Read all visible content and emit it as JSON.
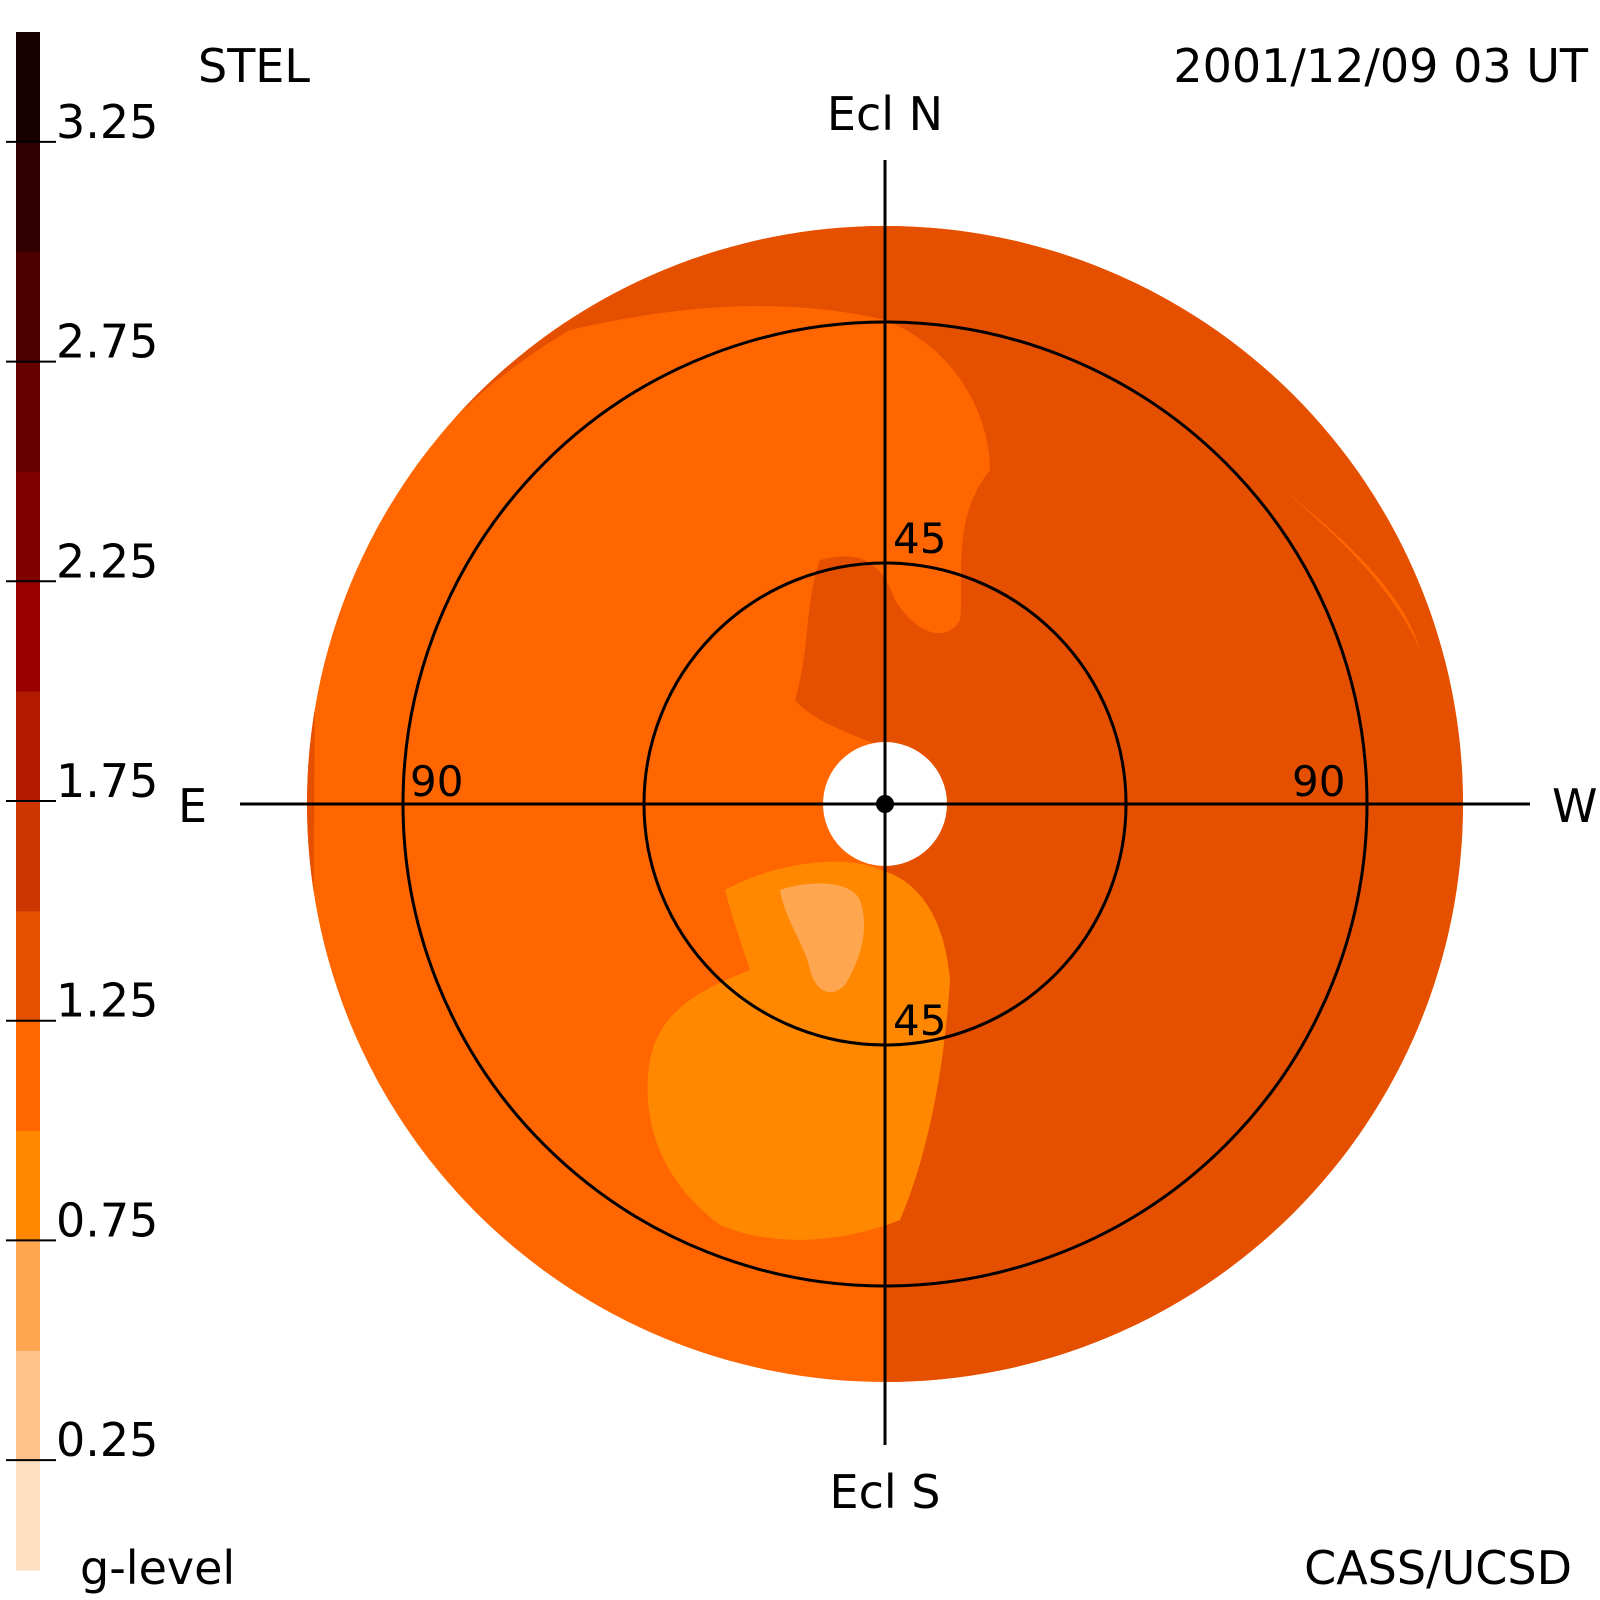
{
  "header": {
    "instrument": "STEL",
    "timestamp": "2001/12/09 03 UT"
  },
  "footer": {
    "colorbar_label": "g-level",
    "credit": "CASS/UCSD"
  },
  "directions": {
    "north": "Ecl N",
    "south": "Ecl S",
    "east": "E",
    "west": "W"
  },
  "ring_labels": {
    "inner_top": "45",
    "inner_bottom": "45",
    "outer_left": "90",
    "outer_right": "90"
  },
  "chart_data": {
    "type": "heatmap",
    "projection": "fisheye sky map centred on the Sun (ecliptic frame)",
    "elongation_rings": [
      45,
      90
    ],
    "axes": [
      "Ecl N",
      "Ecl S",
      "E",
      "W"
    ],
    "colorbar": {
      "label": "g-level",
      "range": [
        0,
        3.5
      ],
      "tick_values": [
        0.25,
        0.75,
        1.25,
        1.75,
        2.25,
        2.75,
        3.25
      ],
      "tick_labels": [
        "0.25",
        "0.75",
        "1.25",
        "1.75",
        "2.25",
        "2.75",
        "3.25"
      ],
      "bins": [
        {
          "from": 0.0,
          "to": 0.25,
          "color": "#ffdfc2"
        },
        {
          "from": 0.25,
          "to": 0.5,
          "color": "#ffc38a"
        },
        {
          "from": 0.5,
          "to": 0.75,
          "color": "#ffa650"
        },
        {
          "from": 0.75,
          "to": 1.0,
          "color": "#ff8800"
        },
        {
          "from": 1.0,
          "to": 1.25,
          "color": "#ff6600"
        },
        {
          "from": 1.25,
          "to": 1.5,
          "color": "#e54f00"
        },
        {
          "from": 1.5,
          "to": 1.75,
          "color": "#cc3600"
        },
        {
          "from": 1.75,
          "to": 2.0,
          "color": "#b21b00"
        },
        {
          "from": 2.0,
          "to": 2.25,
          "color": "#990000"
        },
        {
          "from": 2.25,
          "to": 2.5,
          "color": "#800000"
        },
        {
          "from": 2.5,
          "to": 2.75,
          "color": "#650000"
        },
        {
          "from": 2.75,
          "to": 3.0,
          "color": "#4c0000"
        },
        {
          "from": 3.0,
          "to": 3.25,
          "color": "#320000"
        },
        {
          "from": 3.25,
          "to": 3.5,
          "color": "#180000"
        }
      ]
    },
    "regions": [
      {
        "name": "background",
        "g_level_bin": [
          1.0,
          1.25
        ],
        "color": "#ff6600"
      },
      {
        "name": "outer-rim",
        "g_level_bin": [
          1.25,
          1.5
        ],
        "color": "#e54f00"
      },
      {
        "name": "north-enhancement",
        "g_level_bin": [
          1.25,
          1.5
        ],
        "color": "#e54f00"
      },
      {
        "name": "west-patch",
        "g_level_bin": [
          1.25,
          1.5
        ],
        "color": "#e54f00"
      },
      {
        "name": "south-depletion",
        "g_level_bin": [
          0.75,
          1.0
        ],
        "color": "#ff8800"
      },
      {
        "name": "south-core",
        "g_level_bin": [
          0.5,
          0.75
        ],
        "color": "#ffa650"
      }
    ]
  }
}
